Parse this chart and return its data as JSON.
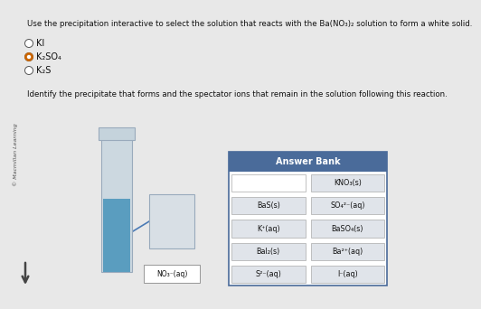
{
  "bg_color": "#e8e8e8",
  "text_color": "#111111",
  "title_line1": "Use the precipitation interactive to select the solution that reacts with the Ba(NO",
  "title_line1b": ")₂ solution to form a white solid.",
  "title_subscript": "3",
  "radio_options": [
    "KI",
    "K₂SO₄",
    "K₂S"
  ],
  "radio_selected": 1,
  "identify_text": "Identify the precipitate that forms and the spectator ions that remain in the solution following this reaction.",
  "watermark": "© Macmillan Learning",
  "answer_bank_title": "Answer Bank",
  "answer_bank_bg": "#4a6b9a",
  "answer_bank_items": [
    [
      "",
      "KNO₃(s)"
    ],
    [
      "BaS(s)",
      "SO₄²⁻(aq)"
    ],
    [
      "K⁺(aq)",
      "BaSO₄(s)"
    ],
    [
      "BaI₂(s)",
      "Ba²⁺(aq)"
    ],
    [
      "S²⁻(aq)",
      "I⁻(aq)"
    ]
  ],
  "no3_label": "NO₃⁻(aq)",
  "cell_bg": "#e0e4ea",
  "cell_border": "#aaaaaa",
  "white": "#ffffff",
  "beaker_glass": "#ccd8e0",
  "beaker_liquid": "#5a9dbf",
  "beaker_dark": "#99aabc",
  "down_arrow_color": "#444444"
}
